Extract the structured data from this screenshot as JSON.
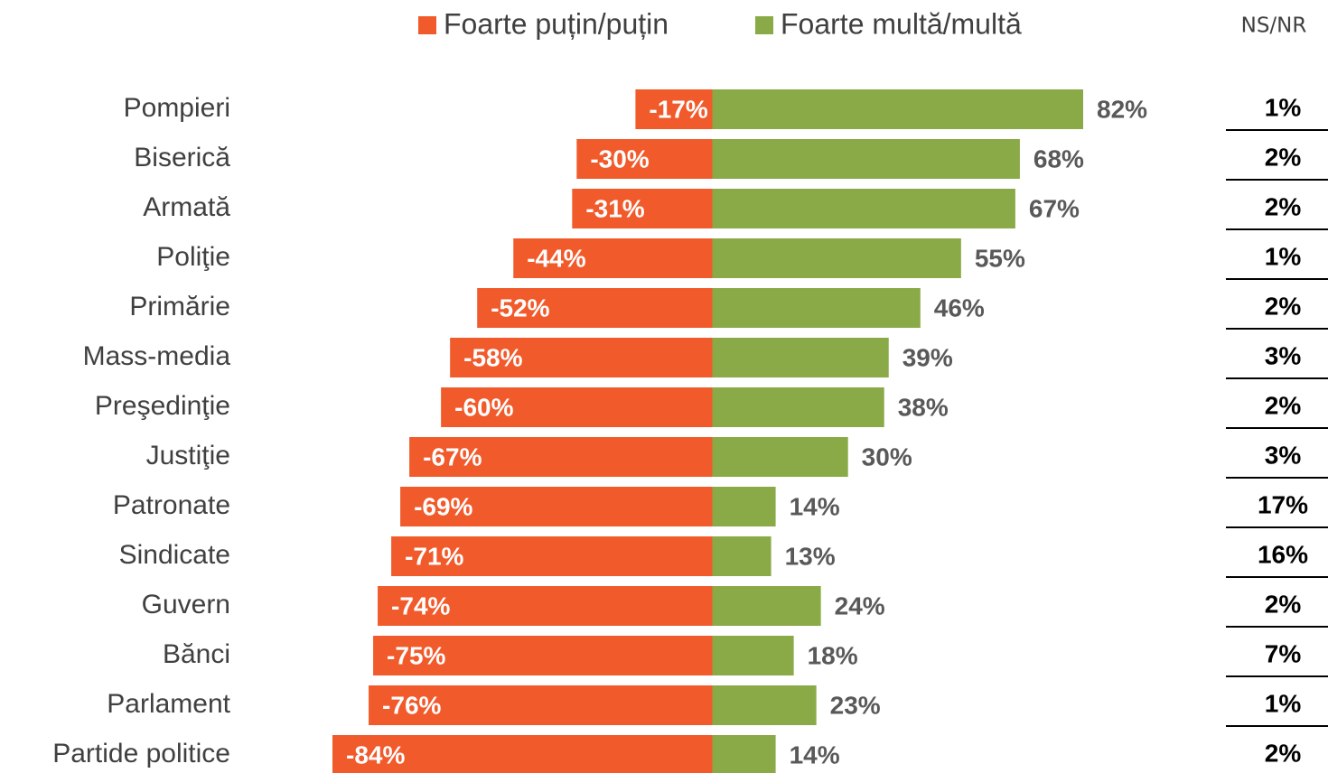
{
  "chart_data": {
    "type": "diverging-bar",
    "categories": [
      "Pompieri",
      "Biserică",
      "Armată",
      "Poliţie",
      "Primărie",
      "Mass-media",
      "Preşedinţie",
      "Justiţie",
      "Patronate",
      "Sindicate",
      "Guvern",
      "Bănci",
      "Parlament",
      "Partide politice"
    ],
    "series": [
      {
        "name": "Foarte puțin/puțin",
        "color": "#f15a2b",
        "values": [
          -17,
          -30,
          -31,
          -44,
          -52,
          -58,
          -60,
          -67,
          -69,
          -71,
          -74,
          -75,
          -76,
          -84
        ],
        "value_labels": [
          "-17%",
          "-30%",
          "-31%",
          "-44%",
          "-52%",
          "-58%",
          "-60%",
          "-67%",
          "-69%",
          "-71%",
          "-74%",
          "-75%",
          "-76%",
          "-84%"
        ]
      },
      {
        "name": "Foarte multă/multă",
        "color": "#8aaa47",
        "values": [
          82,
          68,
          67,
          55,
          46,
          39,
          38,
          30,
          14,
          13,
          24,
          18,
          23,
          14
        ],
        "value_labels": [
          "82%",
          "68%",
          "67%",
          "55%",
          "46%",
          "39%",
          "38%",
          "30%",
          "14%",
          "13%",
          "24%",
          "18%",
          "23%",
          "14%"
        ]
      },
      {
        "name": "NS/NR",
        "values": [
          1,
          2,
          2,
          1,
          2,
          3,
          2,
          3,
          17,
          16,
          2,
          7,
          1,
          2
        ],
        "value_labels": [
          "1%",
          "2%",
          "2%",
          "1%",
          "2%",
          "3%",
          "2%",
          "3%",
          "17%",
          "16%",
          "2%",
          "7%",
          "1%",
          "2%"
        ]
      }
    ]
  }
}
